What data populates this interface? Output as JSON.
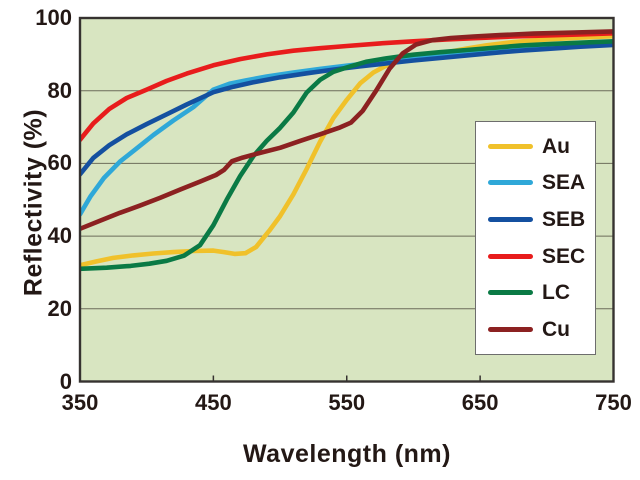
{
  "chart_data": {
    "type": "line",
    "title": "",
    "xlabel": "Wavelength (nm)",
    "ylabel": "Reflectivity (%)",
    "xlim": [
      350,
      750
    ],
    "ylim": [
      0,
      100
    ],
    "xticks": [
      350,
      450,
      550,
      650,
      750
    ],
    "yticks": [
      100,
      80,
      60,
      40,
      20,
      0
    ],
    "grid": "horizontal-only",
    "legend_position": "inside-bottom-right",
    "plot_bg_color": "#d8e5c1",
    "grid_color": "#6c6c5a",
    "axis_color": "#363230",
    "text_color": "#231815",
    "series": [
      {
        "name": "Au",
        "color": "#f0c12b",
        "points": [
          [
            350,
            32
          ],
          [
            362,
            33
          ],
          [
            375,
            34
          ],
          [
            390,
            34.7
          ],
          [
            405,
            35.2
          ],
          [
            420,
            35.6
          ],
          [
            435,
            35.9
          ],
          [
            450,
            36
          ],
          [
            458,
            35.6
          ],
          [
            466,
            35.1
          ],
          [
            474,
            35.3
          ],
          [
            482,
            37
          ],
          [
            492,
            41.5
          ],
          [
            500,
            45.5
          ],
          [
            510,
            51.5
          ],
          [
            520,
            58.5
          ],
          [
            530,
            66
          ],
          [
            540,
            72.5
          ],
          [
            550,
            77.5
          ],
          [
            560,
            82
          ],
          [
            570,
            85
          ],
          [
            580,
            87
          ],
          [
            590,
            88.2
          ],
          [
            600,
            88.9
          ],
          [
            612,
            89.7
          ],
          [
            625,
            90.6
          ],
          [
            640,
            91.6
          ],
          [
            655,
            92.5
          ],
          [
            675,
            93.4
          ],
          [
            700,
            94.1
          ],
          [
            725,
            94.6
          ],
          [
            750,
            95
          ]
        ]
      },
      {
        "name": "SEA",
        "color": "#2fa8d8",
        "points": [
          [
            350,
            46
          ],
          [
            358,
            51
          ],
          [
            368,
            56
          ],
          [
            380,
            60.5
          ],
          [
            392,
            64
          ],
          [
            405,
            67.8
          ],
          [
            420,
            71.8
          ],
          [
            435,
            75.5
          ],
          [
            450,
            80.3
          ],
          [
            462,
            81.9
          ],
          [
            475,
            82.9
          ],
          [
            490,
            83.9
          ],
          [
            510,
            85
          ],
          [
            530,
            86
          ],
          [
            550,
            86.9
          ],
          [
            570,
            87.7
          ],
          [
            590,
            88.5
          ],
          [
            610,
            89.2
          ],
          [
            630,
            90
          ],
          [
            650,
            90.7
          ],
          [
            670,
            91.4
          ],
          [
            690,
            92
          ],
          [
            710,
            92.5
          ],
          [
            730,
            92.9
          ],
          [
            750,
            93.2
          ]
        ]
      },
      {
        "name": "SEB",
        "color": "#1450a0",
        "points": [
          [
            350,
            57
          ],
          [
            360,
            61.5
          ],
          [
            372,
            65
          ],
          [
            385,
            68
          ],
          [
            400,
            70.8
          ],
          [
            415,
            73.5
          ],
          [
            430,
            76.2
          ],
          [
            450,
            79.6
          ],
          [
            465,
            81.1
          ],
          [
            480,
            82.3
          ],
          [
            500,
            83.7
          ],
          [
            520,
            84.8
          ],
          [
            540,
            85.8
          ],
          [
            560,
            86.7
          ],
          [
            580,
            87.5
          ],
          [
            600,
            88.3
          ],
          [
            620,
            89
          ],
          [
            640,
            89.7
          ],
          [
            660,
            90.4
          ],
          [
            680,
            91
          ],
          [
            700,
            91.5
          ],
          [
            725,
            92.1
          ],
          [
            750,
            92.6
          ]
        ]
      },
      {
        "name": "SEC",
        "color": "#e81c1c",
        "points": [
          [
            350,
            66.5
          ],
          [
            360,
            71
          ],
          [
            372,
            75
          ],
          [
            385,
            78
          ],
          [
            400,
            80.3
          ],
          [
            415,
            82.7
          ],
          [
            430,
            84.7
          ],
          [
            450,
            87
          ],
          [
            470,
            88.7
          ],
          [
            490,
            90
          ],
          [
            510,
            91
          ],
          [
            530,
            91.7
          ],
          [
            550,
            92.3
          ],
          [
            575,
            93
          ],
          [
            600,
            93.6
          ],
          [
            625,
            94.1
          ],
          [
            650,
            94.5
          ],
          [
            675,
            94.9
          ],
          [
            700,
            95.2
          ],
          [
            725,
            95.5
          ],
          [
            750,
            95.8
          ]
        ]
      },
      {
        "name": "LC",
        "color": "#0a7a45",
        "points": [
          [
            350,
            31
          ],
          [
            370,
            31.3
          ],
          [
            388,
            31.8
          ],
          [
            402,
            32.4
          ],
          [
            415,
            33.2
          ],
          [
            428,
            34.6
          ],
          [
            440,
            37.5
          ],
          [
            450,
            43
          ],
          [
            460,
            50
          ],
          [
            470,
            56.5
          ],
          [
            480,
            62
          ],
          [
            490,
            66.2
          ],
          [
            500,
            69.8
          ],
          [
            510,
            74
          ],
          [
            520,
            79.5
          ],
          [
            530,
            83
          ],
          [
            540,
            85.2
          ],
          [
            550,
            86.4
          ],
          [
            565,
            88
          ],
          [
            580,
            88.9
          ],
          [
            600,
            89.9
          ],
          [
            620,
            90.6
          ],
          [
            640,
            91.2
          ],
          [
            660,
            91.8
          ],
          [
            680,
            92.4
          ],
          [
            700,
            92.8
          ],
          [
            725,
            93.2
          ],
          [
            750,
            93.6
          ]
        ]
      },
      {
        "name": "Cu",
        "color": "#8c2121",
        "points": [
          [
            350,
            42
          ],
          [
            365,
            44.2
          ],
          [
            380,
            46.4
          ],
          [
            395,
            48.4
          ],
          [
            410,
            50.5
          ],
          [
            425,
            52.8
          ],
          [
            440,
            55
          ],
          [
            452,
            56.8
          ],
          [
            458,
            58.2
          ],
          [
            464,
            60.6
          ],
          [
            472,
            61.6
          ],
          [
            485,
            62.9
          ],
          [
            500,
            64.3
          ],
          [
            515,
            66.2
          ],
          [
            530,
            68
          ],
          [
            545,
            69.9
          ],
          [
            553,
            71.2
          ],
          [
            562,
            74.5
          ],
          [
            572,
            80
          ],
          [
            582,
            86
          ],
          [
            592,
            90.3
          ],
          [
            602,
            92.7
          ],
          [
            614,
            93.9
          ],
          [
            628,
            94.5
          ],
          [
            645,
            94.9
          ],
          [
            665,
            95.3
          ],
          [
            690,
            95.7
          ],
          [
            720,
            96
          ],
          [
            750,
            96.3
          ]
        ]
      }
    ]
  }
}
